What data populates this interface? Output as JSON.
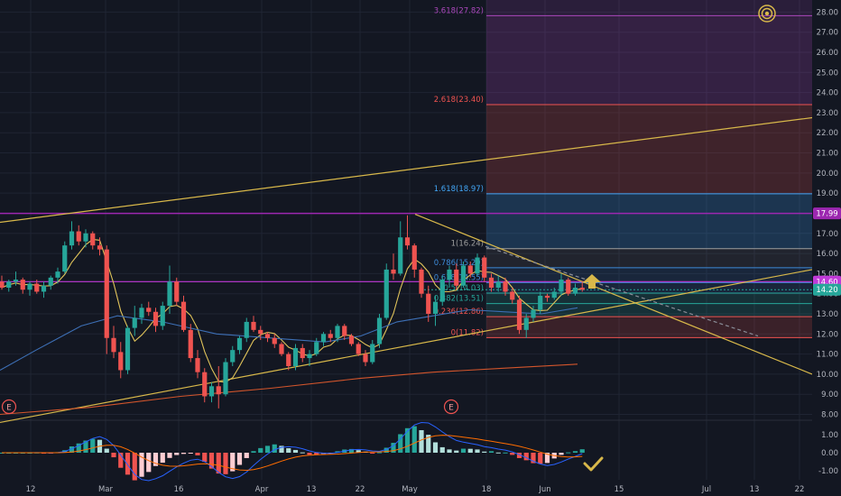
{
  "chart_data": {
    "type": "candlestick",
    "colors": {
      "background": "#131722",
      "grid": "#1f2433",
      "up": "#26a69a",
      "down": "#ef5350",
      "axis_text": "#b2b5be",
      "sma_fast": "#e0c35a",
      "sma_mid": "#3d6fb5",
      "sma_slow": "#d2552c",
      "trendline": "#d8b84a",
      "level_purple": "#9c27b0",
      "macd_line": "#2962ff",
      "signal_line": "#ff6d00"
    },
    "y_axis": {
      "range": [
        7.8,
        28.6
      ],
      "ticks": [
        "8.00",
        "9.00",
        "10.00",
        "11.00",
        "12.00",
        "13.00",
        "14.00",
        "15.00",
        "16.00",
        "17.00",
        "18.00",
        "19.00",
        "20.00",
        "21.00",
        "22.00",
        "23.00",
        "24.00",
        "25.00",
        "26.00",
        "27.00",
        "28.00"
      ]
    },
    "x_axis_labels": [
      "12",
      "Mar",
      "16",
      "Apr",
      "13",
      "22",
      "May",
      "18",
      "Jun",
      "15",
      "Jul",
      "13",
      "22"
    ],
    "price_badges": {
      "level_purple": "17.99",
      "level_magenta": "14.60",
      "last_price": "14.20"
    },
    "horizontal_levels": [
      {
        "name": "resistance",
        "value": 17.99
      },
      {
        "name": "current-line",
        "value": 14.6
      }
    ],
    "fib_levels": [
      {
        "label": "0(11.82)",
        "value": 11.82,
        "color": "#ef5350"
      },
      {
        "label": "0.236(12.86)",
        "value": 12.86,
        "color": "#ef5350"
      },
      {
        "label": "0.382(13.51)",
        "value": 13.51,
        "color": "#26a69a"
      },
      {
        "label": "0.5(14.03)",
        "value": 14.03,
        "color": "#26a69a"
      },
      {
        "label": "0.618(14.55)",
        "value": 14.55,
        "color": "#3d8ad8"
      },
      {
        "label": "0.786(15.29)",
        "value": 15.29,
        "color": "#3d8ad8"
      },
      {
        "label": "1(16.24)",
        "value": 16.24,
        "color": "#9e9e9e"
      },
      {
        "label": "1.618(18.97)",
        "value": 18.97,
        "color": "#42a5f5"
      },
      {
        "label": "2.618(23.40)",
        "value": 23.4,
        "color": "#ef5350"
      },
      {
        "label": "3.618(27.82)",
        "value": 27.82,
        "color": "#ab47bc"
      }
    ],
    "earnings_markers": [
      {
        "label": "E",
        "index": 0
      },
      {
        "label": "E",
        "index": 55
      }
    ],
    "candles": [
      [
        14.6,
        14.9,
        14.2,
        14.3
      ],
      [
        14.3,
        14.7,
        14.1,
        14.6
      ],
      [
        14.6,
        15.1,
        14.4,
        14.7
      ],
      [
        14.7,
        14.8,
        14.0,
        14.2
      ],
      [
        14.2,
        14.6,
        13.9,
        14.5
      ],
      [
        14.5,
        14.7,
        14.0,
        14.1
      ],
      [
        14.1,
        14.6,
        13.8,
        14.4
      ],
      [
        14.4,
        14.9,
        14.2,
        14.8
      ],
      [
        14.8,
        15.3,
        14.5,
        15.1
      ],
      [
        15.1,
        16.6,
        15.0,
        16.4
      ],
      [
        16.4,
        17.6,
        16.2,
        17.1
      ],
      [
        17.1,
        17.4,
        16.4,
        16.6
      ],
      [
        16.6,
        17.2,
        16.3,
        17.0
      ],
      [
        17.0,
        17.1,
        16.2,
        16.4
      ],
      [
        16.4,
        16.8,
        15.9,
        16.2
      ],
      [
        16.2,
        16.4,
        11.0,
        11.8
      ],
      [
        11.8,
        12.4,
        10.8,
        11.1
      ],
      [
        11.1,
        11.6,
        9.8,
        10.2
      ],
      [
        10.2,
        12.4,
        10.0,
        12.3
      ],
      [
        12.3,
        13.4,
        11.9,
        12.8
      ],
      [
        12.8,
        13.5,
        12.5,
        13.3
      ],
      [
        13.3,
        13.6,
        12.9,
        13.1
      ],
      [
        13.1,
        13.3,
        12.1,
        12.4
      ],
      [
        12.4,
        13.6,
        12.2,
        13.4
      ],
      [
        13.4,
        15.4,
        13.0,
        14.6
      ],
      [
        14.6,
        14.8,
        13.4,
        13.6
      ],
      [
        13.6,
        13.9,
        12.1,
        12.2
      ],
      [
        12.2,
        12.5,
        10.6,
        10.8
      ],
      [
        10.8,
        11.2,
        9.8,
        10.1
      ],
      [
        10.1,
        10.3,
        8.6,
        8.9
      ],
      [
        8.9,
        9.6,
        8.6,
        9.4
      ],
      [
        9.4,
        10.4,
        8.3,
        9.0
      ],
      [
        9.0,
        10.8,
        8.9,
        10.6
      ],
      [
        10.6,
        11.4,
        10.4,
        11.2
      ],
      [
        11.2,
        11.9,
        11.0,
        11.8
      ],
      [
        11.8,
        12.8,
        11.6,
        12.6
      ],
      [
        12.6,
        12.9,
        12.1,
        12.2
      ],
      [
        12.2,
        12.4,
        11.7,
        12.0
      ],
      [
        12.0,
        12.1,
        11.6,
        11.8
      ],
      [
        11.8,
        12.0,
        11.3,
        11.5
      ],
      [
        11.5,
        11.6,
        10.9,
        11.0
      ],
      [
        11.0,
        11.1,
        10.2,
        10.4
      ],
      [
        10.4,
        11.5,
        10.2,
        11.3
      ],
      [
        11.3,
        11.5,
        10.6,
        10.8
      ],
      [
        10.8,
        11.2,
        10.4,
        11.0
      ],
      [
        11.0,
        11.8,
        10.9,
        11.6
      ],
      [
        11.6,
        12.1,
        11.4,
        12.0
      ],
      [
        12.0,
        12.2,
        11.6,
        11.8
      ],
      [
        11.8,
        12.5,
        11.6,
        12.4
      ],
      [
        12.4,
        12.5,
        11.7,
        11.9
      ],
      [
        11.9,
        12.0,
        11.4,
        11.5
      ],
      [
        11.5,
        11.6,
        10.9,
        11.0
      ],
      [
        11.0,
        11.2,
        10.4,
        10.6
      ],
      [
        10.6,
        11.7,
        10.5,
        11.5
      ],
      [
        11.5,
        13.0,
        11.3,
        12.8
      ],
      [
        12.8,
        15.5,
        12.7,
        15.2
      ],
      [
        15.2,
        16.0,
        14.7,
        15.0
      ],
      [
        15.0,
        17.6,
        14.9,
        16.8
      ],
      [
        16.8,
        17.9,
        16.2,
        16.4
      ],
      [
        16.4,
        16.5,
        14.8,
        15.2
      ],
      [
        15.2,
        15.3,
        13.8,
        14.0
      ],
      [
        14.0,
        14.4,
        12.6,
        13.0
      ],
      [
        13.0,
        13.9,
        12.4,
        13.6
      ],
      [
        13.6,
        14.9,
        13.4,
        14.7
      ],
      [
        14.7,
        15.4,
        14.3,
        15.2
      ],
      [
        15.2,
        15.5,
        14.2,
        14.4
      ],
      [
        14.4,
        15.6,
        14.3,
        15.4
      ],
      [
        15.4,
        15.6,
        14.8,
        15.0
      ],
      [
        15.0,
        16.0,
        14.9,
        15.8
      ],
      [
        15.8,
        15.9,
        14.6,
        14.8
      ],
      [
        14.8,
        15.0,
        14.1,
        14.3
      ],
      [
        14.3,
        14.9,
        14.1,
        14.6
      ],
      [
        14.6,
        14.8,
        13.9,
        14.1
      ],
      [
        14.1,
        14.3,
        13.5,
        13.7
      ],
      [
        13.7,
        13.9,
        12.0,
        12.2
      ],
      [
        12.2,
        13.0,
        11.8,
        12.8
      ],
      [
        12.8,
        13.4,
        12.6,
        13.2
      ],
      [
        13.2,
        14.1,
        13.0,
        13.9
      ],
      [
        13.9,
        14.0,
        13.6,
        13.8
      ],
      [
        13.8,
        14.3,
        13.7,
        14.1
      ],
      [
        14.1,
        15.0,
        13.9,
        14.7
      ],
      [
        14.7,
        14.8,
        13.9,
        14.0
      ],
      [
        14.0,
        14.5,
        13.9,
        14.3
      ],
      [
        14.3,
        14.6,
        14.1,
        14.2
      ]
    ],
    "macd_axis": {
      "ticks": [
        "1.00",
        "0.00",
        "-1.00"
      ],
      "range": [
        -1.4,
        1.6
      ]
    }
  }
}
